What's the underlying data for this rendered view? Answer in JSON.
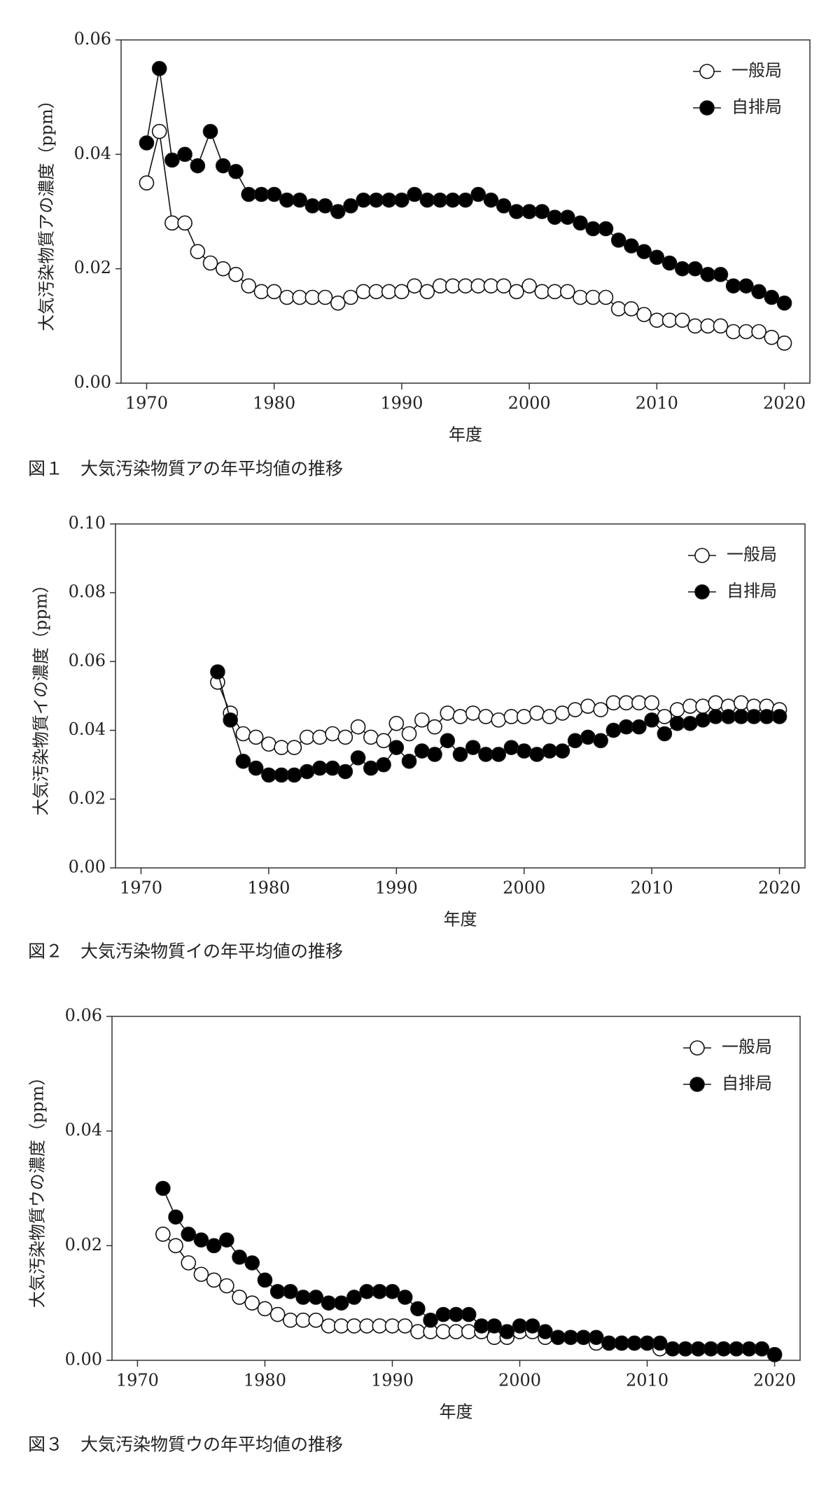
{
  "chart_data": [
    {
      "type": "line",
      "title": "図１　大気汚染物質アの年平均値の推移",
      "xlabel": "年度",
      "ylabel": "大気汚染物質アの濃度（ppm）",
      "xlim": [
        1968,
        2022
      ],
      "xticks": [
        1970,
        1980,
        1990,
        2000,
        2010,
        2020
      ],
      "ylim": [
        0,
        0.06
      ],
      "yticks": [
        {
          "value": 0,
          "label": "0.00"
        },
        0.02,
        0.04,
        0.06
      ],
      "grid": false,
      "legend": "upper right",
      "x": [
        1970,
        1971,
        1972,
        1973,
        1974,
        1975,
        1976,
        1977,
        1978,
        1979,
        1980,
        1981,
        1982,
        1983,
        1984,
        1985,
        1986,
        1987,
        1988,
        1989,
        1990,
        1991,
        1992,
        1993,
        1994,
        1995,
        1996,
        1997,
        1998,
        1999,
        2000,
        2001,
        2002,
        2003,
        2004,
        2005,
        2006,
        2007,
        2008,
        2009,
        2010,
        2011,
        2012,
        2013,
        2014,
        2015,
        2016,
        2017,
        2018,
        2019,
        2020
      ],
      "series": [
        {
          "name": "一般局",
          "color": "#ffffff",
          "values": [
            0.035,
            0.044,
            0.028,
            0.028,
            0.023,
            0.021,
            0.02,
            0.019,
            0.017,
            0.016,
            0.016,
            0.015,
            0.015,
            0.015,
            0.015,
            0.014,
            0.015,
            0.016,
            0.016,
            0.016,
            0.016,
            0.017,
            0.016,
            0.017,
            0.017,
            0.017,
            0.017,
            0.017,
            0.017,
            0.016,
            0.017,
            0.016,
            0.016,
            0.016,
            0.015,
            0.015,
            0.015,
            0.013,
            0.013,
            0.012,
            0.011,
            0.011,
            0.011,
            0.01,
            0.01,
            0.01,
            0.009,
            0.009,
            0.009,
            0.008,
            0.007
          ]
        },
        {
          "name": "自排局",
          "color": "#000000",
          "values": [
            0.042,
            0.055,
            0.039,
            0.04,
            0.038,
            0.044,
            0.038,
            0.037,
            0.033,
            0.033,
            0.033,
            0.032,
            0.032,
            0.031,
            0.031,
            0.03,
            0.031,
            0.032,
            0.032,
            0.032,
            0.032,
            0.033,
            0.032,
            0.032,
            0.032,
            0.032,
            0.033,
            0.032,
            0.031,
            0.03,
            0.03,
            0.03,
            0.029,
            0.029,
            0.028,
            0.027,
            0.027,
            0.025,
            0.024,
            0.023,
            0.022,
            0.021,
            0.02,
            0.02,
            0.019,
            0.019,
            0.017,
            0.017,
            0.016,
            0.015,
            0.014
          ]
        }
      ]
    },
    {
      "type": "line",
      "title": "図２　大気汚染物質イの年平均値の推移",
      "xlabel": "年度",
      "ylabel": "大気汚染物質イの濃度（ppm）",
      "xlim": [
        1968,
        2022
      ],
      "xticks": [
        1970,
        1980,
        1990,
        2000,
        2010,
        2020
      ],
      "ylim": [
        0,
        0.1
      ],
      "yticks": [
        {
          "value": 0,
          "label": "0.00"
        },
        0.02,
        0.04,
        0.06,
        0.08,
        {
          "value": 0.1,
          "label": "0.10"
        }
      ],
      "grid": false,
      "legend": "upper right",
      "x": [
        1976,
        1977,
        1978,
        1979,
        1980,
        1981,
        1982,
        1983,
        1984,
        1985,
        1986,
        1987,
        1988,
        1989,
        1990,
        1991,
        1992,
        1993,
        1994,
        1995,
        1996,
        1997,
        1998,
        1999,
        2000,
        2001,
        2002,
        2003,
        2004,
        2005,
        2006,
        2007,
        2008,
        2009,
        2010,
        2011,
        2012,
        2013,
        2014,
        2015,
        2016,
        2017,
        2018,
        2019,
        2020
      ],
      "series": [
        {
          "name": "一般局",
          "color": "#ffffff",
          "values": [
            0.054,
            0.045,
            0.039,
            0.038,
            0.036,
            0.035,
            0.035,
            0.038,
            0.038,
            0.039,
            0.038,
            0.041,
            0.038,
            0.037,
            0.042,
            0.039,
            0.043,
            0.041,
            0.045,
            0.044,
            0.045,
            0.044,
            0.043,
            0.044,
            0.044,
            0.045,
            0.044,
            0.045,
            0.046,
            0.047,
            0.046,
            0.048,
            0.048,
            0.048,
            0.048,
            0.044,
            0.046,
            0.047,
            0.047,
            0.048,
            0.047,
            0.048,
            0.047,
            0.047,
            0.046
          ]
        },
        {
          "name": "自排局",
          "color": "#000000",
          "values": [
            0.057,
            0.043,
            0.031,
            0.029,
            0.027,
            0.027,
            0.027,
            0.028,
            0.029,
            0.029,
            0.028,
            0.032,
            0.029,
            0.03,
            0.035,
            0.031,
            0.034,
            0.033,
            0.037,
            0.033,
            0.035,
            0.033,
            0.033,
            0.035,
            0.034,
            0.033,
            0.034,
            0.034,
            0.037,
            0.038,
            0.037,
            0.04,
            0.041,
            0.041,
            0.043,
            0.039,
            0.042,
            0.042,
            0.043,
            0.044,
            0.044,
            0.044,
            0.044,
            0.044,
            0.044
          ]
        }
      ]
    },
    {
      "type": "line",
      "title": "図３　大気汚染物質ウの年平均値の推移",
      "xlabel": "年度",
      "ylabel": "大気汚染物質ウの濃度（ppm）",
      "xlim": [
        1968,
        2022
      ],
      "xticks": [
        1970,
        1980,
        1990,
        2000,
        2010,
        2020
      ],
      "ylim": [
        0,
        0.06
      ],
      "yticks": [
        {
          "value": 0,
          "label": "0.00"
        },
        0.02,
        0.04,
        0.06
      ],
      "grid": false,
      "legend": "upper right",
      "x": [
        1972,
        1973,
        1974,
        1975,
        1976,
        1977,
        1978,
        1979,
        1980,
        1981,
        1982,
        1983,
        1984,
        1985,
        1986,
        1987,
        1988,
        1989,
        1990,
        1991,
        1992,
        1993,
        1994,
        1995,
        1996,
        1997,
        1998,
        1999,
        2000,
        2001,
        2002,
        2003,
        2004,
        2005,
        2006,
        2007,
        2008,
        2009,
        2010,
        2011,
        2012,
        2013,
        2014,
        2015,
        2016,
        2017,
        2018,
        2019,
        2020
      ],
      "series": [
        {
          "name": "一般局",
          "color": "#ffffff",
          "values": [
            0.022,
            0.02,
            0.017,
            0.015,
            0.014,
            0.013,
            0.011,
            0.01,
            0.009,
            0.008,
            0.007,
            0.007,
            0.007,
            0.006,
            0.006,
            0.006,
            0.006,
            0.006,
            0.006,
            0.006,
            0.005,
            0.005,
            0.005,
            0.005,
            0.005,
            0.005,
            0.004,
            0.004,
            0.005,
            0.005,
            0.004,
            0.004,
            0.004,
            0.004,
            0.003,
            0.003,
            0.003,
            0.003,
            0.003,
            0.002,
            0.002,
            0.002,
            0.002,
            0.002,
            0.002,
            0.002,
            0.002,
            0.002,
            0.001
          ]
        },
        {
          "name": "自排局",
          "color": "#000000",
          "values": [
            0.03,
            0.025,
            0.022,
            0.021,
            0.02,
            0.021,
            0.018,
            0.017,
            0.014,
            0.012,
            0.012,
            0.011,
            0.011,
            0.01,
            0.01,
            0.011,
            0.012,
            0.012,
            0.012,
            0.011,
            0.009,
            0.007,
            0.008,
            0.008,
            0.008,
            0.006,
            0.006,
            0.005,
            0.006,
            0.006,
            0.005,
            0.004,
            0.004,
            0.004,
            0.004,
            0.003,
            0.003,
            0.003,
            0.003,
            0.003,
            0.002,
            0.002,
            0.002,
            0.002,
            0.002,
            0.002,
            0.002,
            0.002,
            0.001
          ]
        }
      ]
    }
  ]
}
